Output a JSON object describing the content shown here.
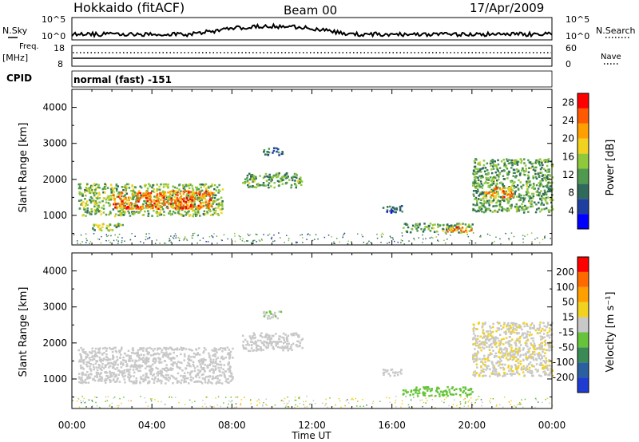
{
  "header": {
    "title": "Hokkaido (fitACF)",
    "beam": "Beam 00",
    "date": "17/Apr/2009"
  },
  "top_panel": {
    "left_label": "N.Sky",
    "right_label": "N.Search",
    "left_ticks": [
      "10^5",
      "10^0"
    ],
    "right_ticks": [
      "10^5",
      "10^0"
    ]
  },
  "freq_panel": {
    "left_label_1": "Freq.",
    "left_label_2": "[MHz]",
    "left_ticks": [
      "18",
      "8"
    ],
    "right_label": "Nave",
    "right_ticks": [
      "60",
      "0"
    ]
  },
  "cpid": {
    "label": "CPID",
    "value": "normal (fast) -151"
  },
  "x_axis": {
    "ticks": [
      "00:00",
      "04:00",
      "08:00",
      "12:00",
      "16:00",
      "20:00",
      "00:00"
    ],
    "label": "Time UT"
  },
  "power_panel": {
    "ylabel": "Slant Range [km]",
    "yticks": [
      "1000",
      "2000",
      "3000",
      "4000"
    ],
    "colorbar_label": "Power [dB]",
    "colorbar_ticks": [
      "4",
      "8",
      "12",
      "16",
      "20",
      "24",
      "28"
    ],
    "colors": [
      "#0000ff",
      "#1f3fa0",
      "#2f6a5a",
      "#4f9a4f",
      "#8fc83a",
      "#f0d21f",
      "#ffa000",
      "#ff5a00",
      "#ff0000"
    ]
  },
  "velocity_panel": {
    "ylabel": "Slant Range [km]",
    "yticks": [
      "1000",
      "2000",
      "3000",
      "4000"
    ],
    "colorbar_label": "Velocity [m s⁻¹]",
    "colorbar_ticks": [
      "200",
      "100",
      "50",
      "15",
      "-15",
      "-50",
      "-100",
      "-200"
    ],
    "colors": [
      "#1e3cd2",
      "#2a60a0",
      "#3a8a56",
      "#66c43a",
      "#c8c8c8",
      "#f0d21f",
      "#ffa000",
      "#ff6a00",
      "#ff0000"
    ]
  },
  "chart_data": [
    {
      "type": "heatmap",
      "title": "Power",
      "xlabel": "Time UT",
      "ylabel": "Slant Range [km]",
      "xlim": [
        0,
        24
      ],
      "ylim": [
        180,
        4500
      ],
      "colorbar": "Power [dB]",
      "colorbar_range": [
        0,
        30
      ],
      "regions": [
        {
          "t": [
            0.3,
            7.5
          ],
          "range": [
            1000,
            1900
          ],
          "power_db": 14
        },
        {
          "t": [
            2.0,
            7.0
          ],
          "range": [
            1200,
            1700
          ],
          "power_db": 24
        },
        {
          "t": [
            1.0,
            2.5
          ],
          "range": [
            600,
            800
          ],
          "power_db": 14
        },
        {
          "t": [
            8.5,
            11.5
          ],
          "range": [
            1800,
            2200
          ],
          "power_db": 12
        },
        {
          "t": [
            9.5,
            10.5
          ],
          "range": [
            2700,
            2900
          ],
          "power_db": 8
        },
        {
          "t": [
            15.5,
            16.5
          ],
          "range": [
            1100,
            1300
          ],
          "power_db": 6
        },
        {
          "t": [
            16.5,
            20.0
          ],
          "range": [
            550,
            800
          ],
          "power_db": 12
        },
        {
          "t": [
            18.5,
            20.0
          ],
          "range": [
            550,
            700
          ],
          "power_db": 22
        },
        {
          "t": [
            20.0,
            24.0
          ],
          "range": [
            1100,
            2600
          ],
          "power_db": 12
        },
        {
          "t": [
            20.5,
            22.0
          ],
          "range": [
            1500,
            1800
          ],
          "power_db": 22
        }
      ]
    },
    {
      "type": "heatmap",
      "title": "Velocity",
      "xlabel": "Time UT",
      "ylabel": "Slant Range [km]",
      "xlim": [
        0,
        24
      ],
      "ylim": [
        180,
        4500
      ],
      "colorbar": "Velocity [m s⁻¹]",
      "colorbar_range": [
        -200,
        200
      ],
      "regions": [
        {
          "t": [
            0.3,
            8.0
          ],
          "range": [
            900,
            1900
          ],
          "velocity": 0
        },
        {
          "t": [
            8.5,
            11.5
          ],
          "range": [
            1800,
            2300
          ],
          "velocity": 0
        },
        {
          "t": [
            9.5,
            10.5
          ],
          "range": [
            2700,
            2900
          ],
          "velocity": -20
        },
        {
          "t": [
            15.5,
            16.5
          ],
          "range": [
            1100,
            1300
          ],
          "velocity": 0
        },
        {
          "t": [
            16.5,
            20.0
          ],
          "range": [
            550,
            800
          ],
          "velocity": -40
        },
        {
          "t": [
            20.0,
            24.0
          ],
          "range": [
            1100,
            2600
          ],
          "velocity": 20
        }
      ]
    }
  ]
}
